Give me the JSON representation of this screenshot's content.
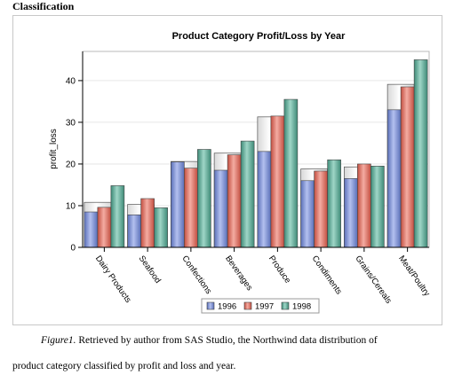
{
  "heading": "Classification",
  "caption": {
    "figure_label": "Figure1.",
    "line1": "Retrieved by author from SAS Studio, the Northwind data distribution of",
    "line2": "product category classified by profit and loss and year."
  },
  "chart_data": {
    "type": "bar",
    "title": "Product Category Profit/Loss by Year",
    "xlabel": "",
    "ylabel": "profit_loss",
    "ylim": [
      0,
      47
    ],
    "yticks": [
      0,
      10,
      20,
      30,
      40
    ],
    "grid": true,
    "legend_position": "bottom",
    "categories": [
      "Dairy Products",
      "Seafood",
      "Confections",
      "Beverages",
      "Produce",
      "Condiments",
      "Grains/Cereals",
      "Meat/Poultry"
    ],
    "series": [
      {
        "name": "1996",
        "color": "#7b8fd1",
        "values": [
          8.5,
          7.8,
          20.5,
          18.5,
          23.0,
          16.0,
          16.5,
          33.0
        ]
      },
      {
        "name": "1997",
        "color": "#e0776a",
        "values": [
          9.6,
          11.7,
          19.0,
          22.2,
          31.5,
          18.3,
          20.0,
          38.5
        ]
      },
      {
        "name": "1998",
        "color": "#5fa896",
        "values": [
          14.8,
          9.5,
          23.5,
          25.5,
          35.5,
          21.0,
          19.5,
          45.0
        ]
      }
    ],
    "outline_values": [
      10.8,
      10.3,
      20.6,
      22.6,
      31.3,
      18.8,
      19.3,
      39.1
    ]
  }
}
